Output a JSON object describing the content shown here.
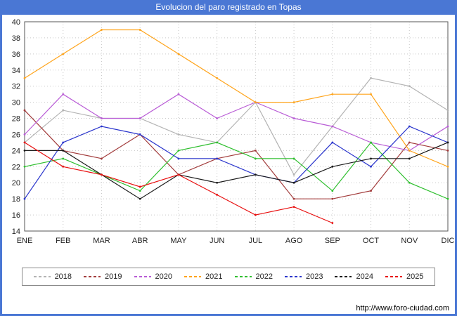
{
  "title": "Evolucion del paro registrado en Topas",
  "footer": {
    "url": "http://www.foro-ciudad.com"
  },
  "colors": {
    "frame": "#4a77d4",
    "title_text": "#ffffff",
    "plot_border": "#555555",
    "gridline": "#c8c8c8"
  },
  "chart_data": {
    "type": "line",
    "title": "Evolucion del paro registrado en Topas",
    "categories": [
      "ENE",
      "FEB",
      "MAR",
      "ABR",
      "MAY",
      "JUN",
      "JUL",
      "AGO",
      "SEP",
      "OCT",
      "NOV",
      "DIC"
    ],
    "xlabel": "",
    "ylabel": "",
    "ylim": [
      14,
      40
    ],
    "ytick_step": 2,
    "grid": true,
    "legend_position": "bottom",
    "series": [
      {
        "name": "2018",
        "color": "#b3b3b3",
        "values": [
          25,
          29,
          28,
          28,
          26,
          25,
          30,
          21,
          27,
          33,
          32,
          29
        ]
      },
      {
        "name": "2019",
        "color": "#a23b3b",
        "values": [
          29,
          24,
          23,
          26,
          21,
          23,
          24,
          18,
          18,
          19,
          25,
          24
        ]
      },
      {
        "name": "2020",
        "color": "#b95cd6",
        "values": [
          26,
          31,
          28,
          28,
          31,
          28,
          30,
          28,
          27,
          25,
          24,
          27
        ]
      },
      {
        "name": "2021",
        "color": "#ffa41b",
        "values": [
          33,
          36,
          39,
          39,
          36,
          33,
          30,
          30,
          31,
          31,
          24,
          22
        ]
      },
      {
        "name": "2022",
        "color": "#2fbf2f",
        "values": [
          22,
          23,
          21,
          19,
          24,
          25,
          23,
          23,
          19,
          25,
          20,
          18
        ]
      },
      {
        "name": "2023",
        "color": "#2a35cc",
        "values": [
          18,
          25,
          27,
          26,
          23,
          23,
          21,
          20,
          25,
          22,
          27,
          25
        ]
      },
      {
        "name": "2024",
        "color": "#1a1a1a",
        "values": [
          24,
          24,
          21,
          18,
          21,
          20,
          21,
          20,
          22,
          23,
          23,
          25
        ]
      },
      {
        "name": "2025",
        "color": "#e81010",
        "values": [
          25,
          22,
          21,
          19.5,
          21,
          18.5,
          16,
          17,
          15,
          null,
          null,
          null
        ]
      }
    ]
  }
}
